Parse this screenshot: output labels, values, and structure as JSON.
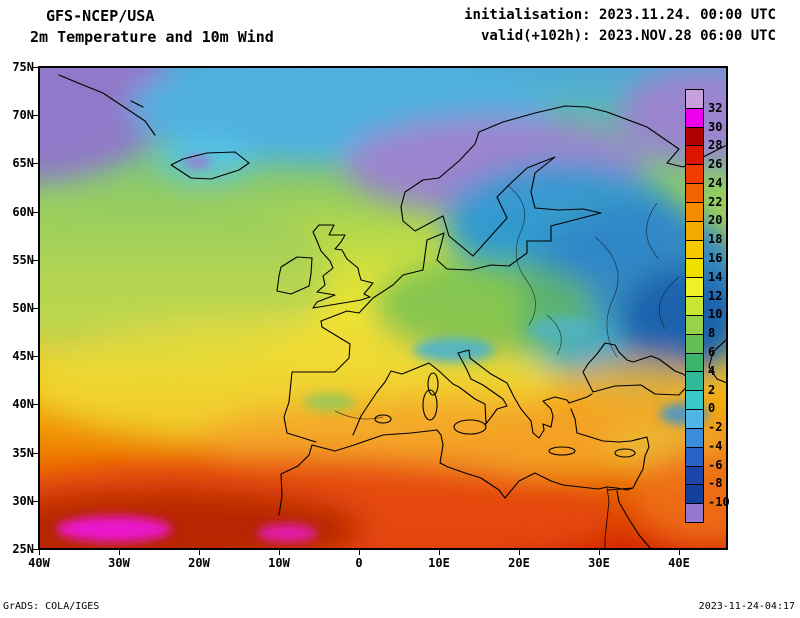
{
  "header": {
    "model": "GFS-NCEP/USA",
    "subtitle": "2m Temperature and 10m Wind",
    "init_label": "initialisation: 2023.11.24. 00:00 UTC",
    "valid_label": "valid(+102h): 2023.NOV.28 06:00 UTC"
  },
  "axes": {
    "lat_ticks": [
      "75N",
      "70N",
      "65N",
      "60N",
      "55N",
      "50N",
      "45N",
      "40N",
      "35N",
      "30N",
      "25N"
    ],
    "lon_ticks": [
      "40W",
      "30W",
      "20W",
      "10W",
      "0",
      "10E",
      "20E",
      "30E",
      "40E"
    ]
  },
  "colorbar": {
    "labels": [
      "32",
      "30",
      "28",
      "26",
      "24",
      "22",
      "20",
      "18",
      "16",
      "14",
      "12",
      "10",
      "8",
      "6",
      "4",
      "2",
      "0",
      "-2",
      "-4",
      "-6",
      "-8",
      "-10"
    ],
    "colors": [
      "#c8a0dc",
      "#ee00ee",
      "#b00000",
      "#dc1400",
      "#f03c00",
      "#f06400",
      "#f58c00",
      "#f5aa00",
      "#f5c800",
      "#f0e000",
      "#f0f028",
      "#c8e632",
      "#96d24b",
      "#64be55",
      "#3cb46e",
      "#32b99b",
      "#3cc8c8",
      "#50b4e6",
      "#3c8cdc",
      "#2864c8",
      "#1e46aa",
      "#14409b",
      "#9678d2"
    ]
  },
  "footer": {
    "credit": "GrADS: COLA/IGES",
    "timestamp": "2023-11-24-04:17"
  },
  "chart_data": {
    "type": "heatmap",
    "title": "2m Temperature and 10m Wind",
    "model": "GFS-NCEP/USA",
    "initialisation": "2023.11.24. 00:00 UTC",
    "valid": "2023.NOV.28 06:00 UTC",
    "lead_hours": 102,
    "lat_labels": [
      "75N",
      "70N",
      "65N",
      "60N",
      "55N",
      "50N",
      "45N",
      "40N",
      "35N",
      "30N",
      "25N"
    ],
    "lon_labels": [
      "40W",
      "30W",
      "20W",
      "10W",
      "0",
      "10E",
      "20E",
      "30E",
      "40E"
    ],
    "temperature_levels": [
      32,
      30,
      28,
      26,
      24,
      22,
      20,
      18,
      16,
      14,
      12,
      10,
      8,
      6,
      4,
      2,
      0,
      -2,
      -4,
      -6,
      -8,
      -10
    ],
    "level_colors": [
      "#c8a0dc",
      "#ee00ee",
      "#b00000",
      "#dc1400",
      "#f03c00",
      "#f06400",
      "#f58c00",
      "#f5aa00",
      "#f5c800",
      "#f0e000",
      "#f0f028",
      "#c8e632",
      "#96d24b",
      "#64be55",
      "#3cb46e",
      "#32b99b",
      "#3cc8c8",
      "#50b4e6",
      "#3c8cdc",
      "#2864c8",
      "#1e46aa",
      "#14409b",
      "#9678d2"
    ],
    "legend_position": "right",
    "grid": false
  }
}
